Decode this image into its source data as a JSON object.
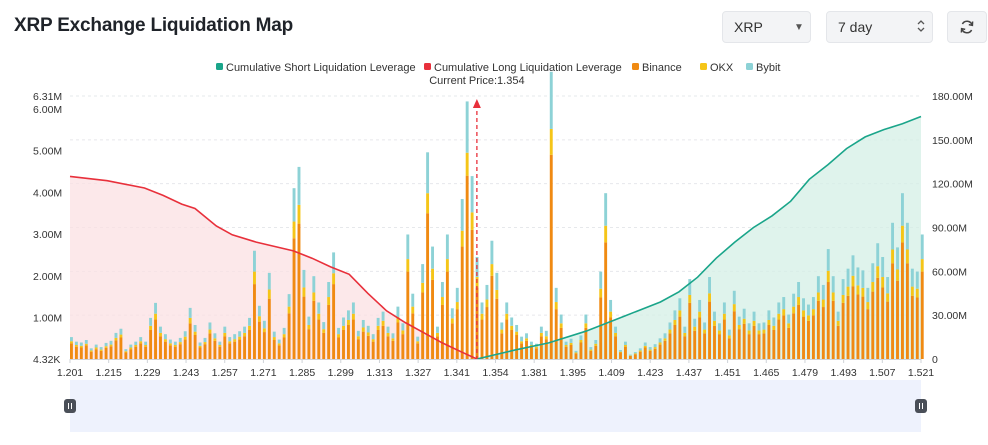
{
  "header": {
    "title": "XRP Exchange Liquidation Map",
    "symbol_select": "XRP",
    "period_select": "7 day"
  },
  "colors": {
    "short_line": "#1aa58a",
    "long_line": "#e8303b",
    "binance": "#f08a12",
    "okx": "#f5c518",
    "bybit": "#8dd2d6",
    "short_fill": "#d4efe6",
    "long_fill": "#fbe0e3"
  },
  "chart_data": {
    "type": "bar",
    "legend": [
      {
        "key": "short",
        "label": "Cumulative Short Liquidation Leverage"
      },
      {
        "key": "long",
        "label": "Cumulative Long Liquidation Leverage"
      },
      {
        "key": "binance",
        "label": "Binance"
      },
      {
        "key": "okx",
        "label": "OKX"
      },
      {
        "key": "bybit",
        "label": "Bybit"
      }
    ],
    "legend_position": "top",
    "current_price": 1.354,
    "current_price_label": "Current Price:1.354",
    "x_range": [
      1.201,
      1.521
    ],
    "x_ticks": [
      "1.201",
      "1.215",
      "1.229",
      "1.243",
      "1.257",
      "1.271",
      "1.285",
      "1.299",
      "1.313",
      "1.327",
      "1.341",
      "1.354",
      "1.381",
      "1.395",
      "1.409",
      "1.423",
      "1.437",
      "1.451",
      "1.465",
      "1.479",
      "1.493",
      "1.507",
      "1.521"
    ],
    "y_left_range": [
      4320,
      6310000
    ],
    "y_left_ticks": [
      "6.31M",
      "6.00M",
      "5.00M",
      "4.00M",
      "3.00M",
      "2.00M",
      "1.00M",
      "4.32K"
    ],
    "y_right_range": [
      0,
      180000000
    ],
    "y_right_ticks": [
      "180.00M",
      "150.00M",
      "120.00M",
      "90.00M",
      "60.00M",
      "30.00M",
      "0"
    ],
    "long_cumulative": {
      "x": [
        1.201,
        1.215,
        1.229,
        1.236,
        1.243,
        1.248,
        1.256,
        1.262,
        1.271,
        1.278,
        1.285,
        1.292,
        1.299,
        1.306,
        1.313,
        1.32,
        1.327,
        1.334,
        1.341,
        1.348,
        1.354
      ],
      "y": [
        125000000,
        122000000,
        117000000,
        112000000,
        106000000,
        103000000,
        91000000,
        85000000,
        80000000,
        77000000,
        74000000,
        69000000,
        63000000,
        58000000,
        45000000,
        33000000,
        25000000,
        18000000,
        11000000,
        5000000,
        0
      ]
    },
    "short_cumulative": {
      "x": [
        1.354,
        1.368,
        1.381,
        1.395,
        1.409,
        1.423,
        1.43,
        1.437,
        1.444,
        1.451,
        1.458,
        1.465,
        1.472,
        1.479,
        1.486,
        1.493,
        1.5,
        1.507,
        1.514,
        1.521
      ],
      "y": [
        0,
        6000000,
        11000000,
        19000000,
        29000000,
        39000000,
        46000000,
        56000000,
        69000000,
        80000000,
        90000000,
        98000000,
        108000000,
        123000000,
        133000000,
        144000000,
        152000000,
        157000000,
        161000000,
        166000000
      ]
    },
    "bars": {
      "x_start": 1.201,
      "x_step": 0.00186,
      "binance": [
        0.38,
        0.3,
        0.28,
        0.33,
        0.18,
        0.24,
        0.2,
        0.27,
        0.31,
        0.45,
        0.52,
        0.16,
        0.24,
        0.3,
        0.38,
        0.3,
        0.7,
        0.95,
        0.55,
        0.42,
        0.33,
        0.3,
        0.36,
        0.47,
        0.86,
        0.58,
        0.28,
        0.36,
        0.62,
        0.44,
        0.3,
        0.55,
        0.38,
        0.42,
        0.47,
        0.55,
        0.7,
        1.8,
        0.9,
        0.65,
        1.45,
        0.46,
        0.33,
        0.52,
        1.1,
        2.9,
        3.25,
        1.5,
        0.72,
        1.4,
        0.95,
        0.63,
        1.3,
        1.8,
        0.52,
        0.7,
        0.82,
        0.95,
        0.48,
        0.66,
        0.56,
        0.42,
        0.7,
        0.8,
        0.55,
        0.44,
        0.88,
        0.6,
        2.1,
        1.1,
        0.38,
        1.6,
        3.5,
        1.9,
        0.55,
        1.3,
        2.1,
        0.86,
        1.2,
        2.7,
        4.4,
        3.1,
        1.72,
        0.95,
        1.25,
        2.0,
        1.45,
        0.62,
        0.95,
        0.7,
        0.58,
        0.38,
        0.44,
        0.3,
        0.26,
        0.55,
        0.48,
        4.9,
        1.2,
        0.75,
        0.3,
        0.34,
        0.14,
        0.4,
        0.75,
        0.2,
        0.32,
        1.48,
        2.8,
        1.0,
        0.55,
        0.16,
        0.3,
        0.08,
        0.12,
        0.18,
        0.28,
        0.2,
        0.25,
        0.35,
        0.44,
        0.62,
        0.82,
        1.02,
        0.55,
        1.35,
        0.68,
        1.0,
        0.62,
        1.38,
        0.8,
        0.6,
        0.95,
        0.5,
        1.15,
        0.72,
        0.85,
        0.6,
        0.8,
        0.6,
        0.62,
        0.82,
        0.7,
        0.95,
        1.05,
        0.75,
        1.1,
        1.3,
        1.02,
        0.92,
        1.05,
        1.4,
        1.25,
        1.85,
        1.4,
        0.8,
        1.35,
        1.52,
        1.75,
        1.55,
        1.5,
        1.2,
        1.62,
        1.95,
        1.72,
        1.38,
        2.3,
        1.88,
        2.8,
        2.3,
        1.52,
        1.48,
        2.1,
        1.25,
        1.75,
        2.65,
        1.4,
        0.9,
        1.0,
        0.78,
        1.4,
        0.9,
        0.86,
        1.05,
        1.32,
        0.62,
        0.9,
        0.68,
        0.44,
        0.72,
        0.55,
        0.4,
        0.34
      ],
      "okx": [
        0.05,
        0.04,
        0.04,
        0.04,
        0.03,
        0.04,
        0.03,
        0.04,
        0.04,
        0.06,
        0.07,
        0.03,
        0.04,
        0.04,
        0.05,
        0.04,
        0.1,
        0.14,
        0.08,
        0.06,
        0.05,
        0.04,
        0.05,
        0.07,
        0.13,
        0.08,
        0.04,
        0.05,
        0.09,
        0.06,
        0.04,
        0.08,
        0.05,
        0.06,
        0.07,
        0.08,
        0.1,
        0.3,
        0.13,
        0.09,
        0.22,
        0.07,
        0.05,
        0.08,
        0.16,
        0.4,
        0.45,
        0.22,
        0.1,
        0.2,
        0.14,
        0.09,
        0.19,
        0.26,
        0.08,
        0.1,
        0.12,
        0.14,
        0.07,
        0.1,
        0.08,
        0.06,
        0.1,
        0.12,
        0.08,
        0.06,
        0.13,
        0.09,
        0.3,
        0.16,
        0.05,
        0.23,
        0.48,
        0.27,
        0.08,
        0.19,
        0.3,
        0.12,
        0.17,
        0.38,
        0.55,
        0.42,
        0.25,
        0.14,
        0.18,
        0.28,
        0.21,
        0.09,
        0.14,
        0.1,
        0.08,
        0.05,
        0.06,
        0.04,
        0.04,
        0.08,
        0.07,
        0.62,
        0.17,
        0.11,
        0.04,
        0.05,
        0.02,
        0.06,
        0.11,
        0.03,
        0.05,
        0.21,
        0.4,
        0.14,
        0.08,
        0.02,
        0.04,
        0.01,
        0.02,
        0.03,
        0.04,
        0.03,
        0.04,
        0.05,
        0.06,
        0.09,
        0.12,
        0.15,
        0.08,
        0.19,
        0.1,
        0.14,
        0.09,
        0.2,
        0.12,
        0.09,
        0.14,
        0.07,
        0.17,
        0.1,
        0.12,
        0.09,
        0.12,
        0.09,
        0.09,
        0.12,
        0.1,
        0.14,
        0.15,
        0.11,
        0.16,
        0.19,
        0.15,
        0.13,
        0.15,
        0.2,
        0.18,
        0.27,
        0.2,
        0.12,
        0.19,
        0.22,
        0.25,
        0.22,
        0.21,
        0.17,
        0.23,
        0.28,
        0.25,
        0.2,
        0.33,
        0.27,
        0.4,
        0.33,
        0.22,
        0.21,
        0.3,
        0.18,
        0.25,
        0.38,
        0.2,
        0.13,
        0.14,
        0.11,
        0.2,
        0.13,
        0.12,
        0.15,
        0.19,
        0.09,
        0.13,
        0.1,
        0.06,
        0.1,
        0.08,
        0.06,
        0.05
      ],
      "bybit": [
        0.1,
        0.08,
        0.08,
        0.09,
        0.05,
        0.07,
        0.06,
        0.08,
        0.09,
        0.12,
        0.14,
        0.05,
        0.07,
        0.08,
        0.1,
        0.08,
        0.19,
        0.26,
        0.15,
        0.12,
        0.09,
        0.08,
        0.1,
        0.13,
        0.24,
        0.16,
        0.08,
        0.1,
        0.17,
        0.12,
        0.08,
        0.15,
        0.1,
        0.12,
        0.13,
        0.15,
        0.19,
        0.5,
        0.25,
        0.18,
        0.4,
        0.13,
        0.09,
        0.15,
        0.3,
        0.8,
        0.91,
        0.42,
        0.2,
        0.39,
        0.27,
        0.17,
        0.36,
        0.5,
        0.15,
        0.2,
        0.23,
        0.27,
        0.13,
        0.18,
        0.16,
        0.12,
        0.19,
        0.22,
        0.15,
        0.12,
        0.25,
        0.17,
        0.59,
        0.31,
        0.11,
        0.45,
        0.98,
        0.53,
        0.15,
        0.36,
        0.59,
        0.24,
        0.34,
        0.76,
        1.23,
        0.87,
        0.48,
        0.27,
        0.35,
        0.56,
        0.41,
        0.17,
        0.27,
        0.2,
        0.16,
        0.11,
        0.12,
        0.08,
        0.07,
        0.15,
        0.13,
        1.37,
        0.34,
        0.21,
        0.08,
        0.1,
        0.04,
        0.11,
        0.21,
        0.06,
        0.09,
        0.41,
        0.78,
        0.28,
        0.15,
        0.04,
        0.08,
        0.02,
        0.03,
        0.05,
        0.08,
        0.06,
        0.07,
        0.1,
        0.12,
        0.17,
        0.23,
        0.29,
        0.15,
        0.38,
        0.19,
        0.28,
        0.17,
        0.39,
        0.22,
        0.17,
        0.27,
        0.14,
        0.32,
        0.2,
        0.24,
        0.17,
        0.22,
        0.17,
        0.17,
        0.23,
        0.2,
        0.27,
        0.29,
        0.21,
        0.31,
        0.36,
        0.29,
        0.26,
        0.29,
        0.39,
        0.35,
        0.52,
        0.39,
        0.22,
        0.38,
        0.43,
        0.49,
        0.43,
        0.42,
        0.34,
        0.45,
        0.55,
        0.48,
        0.39,
        0.64,
        0.53,
        0.78,
        0.64,
        0.43,
        0.41,
        0.59,
        0.35,
        0.49,
        0.74,
        0.39,
        0.25,
        0.28,
        0.22,
        0.39,
        0.25,
        0.24,
        0.29,
        0.37,
        0.17,
        0.25,
        0.19,
        0.12,
        0.2,
        0.15,
        0.11,
        0.1
      ]
    }
  }
}
